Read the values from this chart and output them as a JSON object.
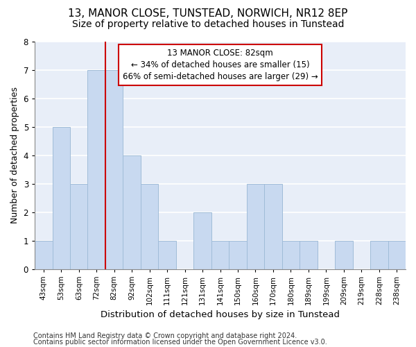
{
  "title1": "13, MANOR CLOSE, TUNSTEAD, NORWICH, NR12 8EP",
  "title2": "Size of property relative to detached houses in Tunstead",
  "xlabel": "Distribution of detached houses by size in Tunstead",
  "ylabel": "Number of detached properties",
  "categories": [
    "43sqm",
    "53sqm",
    "63sqm",
    "72sqm",
    "82sqm",
    "92sqm",
    "102sqm",
    "111sqm",
    "121sqm",
    "131sqm",
    "141sqm",
    "150sqm",
    "160sqm",
    "170sqm",
    "180sqm",
    "189sqm",
    "199sqm",
    "209sqm",
    "219sqm",
    "228sqm",
    "238sqm"
  ],
  "values": [
    1,
    5,
    3,
    7,
    7,
    4,
    3,
    1,
    0,
    2,
    1,
    1,
    3,
    3,
    1,
    1,
    0,
    1,
    0,
    1,
    1
  ],
  "bar_color": "#c8d9f0",
  "bar_edge_color": "#a0bcd8",
  "red_line_index": 4,
  "annotation_text": "13 MANOR CLOSE: 82sqm\n← 34% of detached houses are smaller (15)\n66% of semi-detached houses are larger (29) →",
  "annotation_box_color": "#ffffff",
  "annotation_box_edge": "#cc0000",
  "red_line_color": "#cc0000",
  "ylim": [
    0,
    8
  ],
  "yticks": [
    0,
    1,
    2,
    3,
    4,
    5,
    6,
    7,
    8
  ],
  "footer1": "Contains HM Land Registry data © Crown copyright and database right 2024.",
  "footer2": "Contains public sector information licensed under the Open Government Licence v3.0.",
  "bg_color": "#ffffff",
  "plot_bg_color": "#e8eef8",
  "grid_color": "#ffffff",
  "title1_fontsize": 11,
  "title2_fontsize": 10,
  "xlabel_fontsize": 9.5,
  "ylabel_fontsize": 9,
  "tick_fontsize": 7.5,
  "footer_fontsize": 7
}
